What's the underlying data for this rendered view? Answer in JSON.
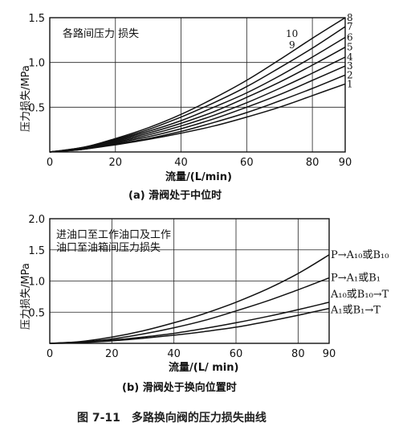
{
  "figure_caption": "图 7-11　多路换向阀的压力损失曲线",
  "chart_data": [
    {
      "type": "line",
      "title": "各路间压力 损失",
      "subtitle": "(a)  滑阀处于中位时",
      "xlabel": "流量/(L/min)",
      "ylabel": "压力损失/MPa",
      "xlim": [
        0,
        90
      ],
      "ylim": [
        0,
        1.5
      ],
      "x_ticks": [
        "0",
        "20",
        "40",
        "60",
        "80",
        "90"
      ],
      "y_ticks": [
        "0.5",
        "1.0",
        "1.5"
      ],
      "grid": true,
      "x": [
        0,
        10,
        20,
        30,
        40,
        50,
        60,
        70,
        80,
        90
      ],
      "series": [
        {
          "name": "1",
          "values": [
            0,
            0.03,
            0.08,
            0.14,
            0.21,
            0.29,
            0.39,
            0.5,
            0.63,
            0.76
          ]
        },
        {
          "name": "2",
          "values": [
            0,
            0.03,
            0.09,
            0.15,
            0.23,
            0.33,
            0.44,
            0.57,
            0.71,
            0.86
          ]
        },
        {
          "name": "3",
          "values": [
            0,
            0.03,
            0.1,
            0.17,
            0.26,
            0.37,
            0.5,
            0.64,
            0.8,
            0.96
          ]
        },
        {
          "name": "4",
          "values": [
            0,
            0.04,
            0.11,
            0.19,
            0.29,
            0.41,
            0.55,
            0.71,
            0.88,
            1.06
          ]
        },
        {
          "name": "5",
          "values": [
            0,
            0.04,
            0.12,
            0.21,
            0.32,
            0.45,
            0.61,
            0.78,
            0.97,
            1.17
          ]
        },
        {
          "name": "6",
          "values": [
            0,
            0.04,
            0.13,
            0.23,
            0.35,
            0.5,
            0.66,
            0.85,
            1.06,
            1.28
          ]
        },
        {
          "name": "7",
          "values": [
            0,
            0.05,
            0.14,
            0.25,
            0.39,
            0.55,
            0.73,
            0.94,
            1.16,
            1.4
          ]
        },
        {
          "name": "8",
          "values": [
            0,
            0.05,
            0.15,
            0.27,
            0.42,
            0.6,
            0.8,
            1.03,
            1.27,
            1.5
          ]
        }
      ],
      "curve_labels_inside": [
        "10",
        "9"
      ]
    },
    {
      "type": "line",
      "title": "进油口至工作油口及工作油口至油箱间压力损失",
      "title_lines": [
        "进油口至工作油口及工作",
        "油口至油箱间压力损失"
      ],
      "subtitle": "(b)  滑阀处于换向位置时",
      "xlabel": "流量/(L/ min)",
      "ylabel": "压力损失/MPa",
      "xlim": [
        0,
        90
      ],
      "ylim": [
        0,
        2.0
      ],
      "x_ticks": [
        "0",
        "20",
        "40",
        "60",
        "80",
        "90"
      ],
      "y_ticks": [
        "0.5",
        "1.0",
        "1.5",
        "2.0"
      ],
      "grid": true,
      "x": [
        0,
        10,
        20,
        30,
        40,
        50,
        60,
        70,
        80,
        90
      ],
      "series": [
        {
          "name": "P→A₁₀或B₁₀",
          "values": [
            0,
            0.03,
            0.1,
            0.2,
            0.33,
            0.48,
            0.66,
            0.87,
            1.12,
            1.42
          ]
        },
        {
          "name": "P→A₁或B₁",
          "values": [
            0,
            0.02,
            0.07,
            0.15,
            0.25,
            0.37,
            0.52,
            0.68,
            0.86,
            1.05
          ]
        },
        {
          "name": "A₁₀或B₁₀→T",
          "values": [
            0,
            0.02,
            0.05,
            0.1,
            0.16,
            0.24,
            0.33,
            0.43,
            0.54,
            0.66
          ]
        },
        {
          "name": "A₁或B₁→T",
          "values": [
            0,
            0.01,
            0.04,
            0.08,
            0.13,
            0.19,
            0.26,
            0.35,
            0.45,
            0.56
          ]
        }
      ]
    }
  ]
}
